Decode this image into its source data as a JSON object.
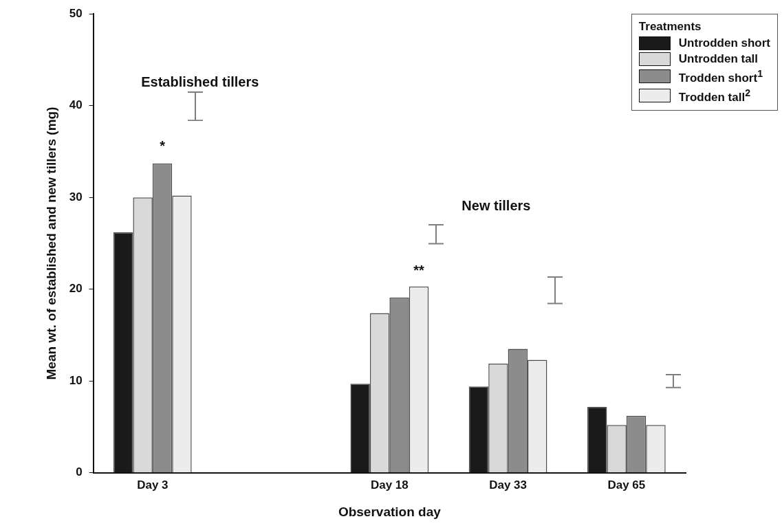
{
  "chart_data": {
    "type": "bar",
    "xlabel": "Observation day",
    "ylabel": "Mean wt. of established and new tillers (mg)",
    "legend_title": "Treatments",
    "legend": "top right",
    "grid": false,
    "categories": [
      "Day 3",
      null,
      "Day 18",
      "Day 33",
      "Day 65"
    ],
    "ylim": [
      0,
      50
    ],
    "yticks": [
      0,
      10,
      20,
      30,
      40,
      50
    ],
    "series": [
      {
        "name": "Untrodden short",
        "color": "#1a1a1a",
        "values": [
          26.2,
          null,
          9.7,
          9.4,
          7.2
        ]
      },
      {
        "name": "Untrodden tall",
        "color": "#d9d9d9",
        "values": [
          30.0,
          null,
          17.4,
          11.9,
          5.2
        ]
      },
      {
        "name": "Trodden short$^{1}$",
        "color": "#8c8c8c",
        "values": [
          33.7,
          null,
          19.1,
          13.5,
          6.2
        ]
      },
      {
        "name": "Trodden tall$^{2}$",
        "color": "#ececec",
        "values": [
          30.2,
          null,
          20.3,
          12.3,
          5.2
        ]
      }
    ],
    "annotations": [
      "Established tillers",
      "New tillers",
      "*",
      "**"
    ]
  }
}
